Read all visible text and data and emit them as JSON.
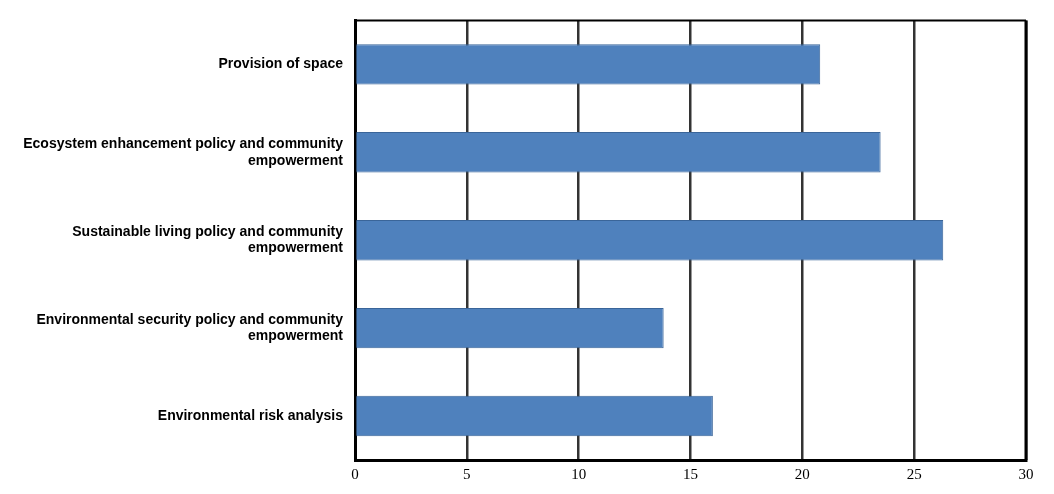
{
  "chart_data": {
    "type": "bar",
    "orientation": "horizontal",
    "categories": [
      "Provision of space",
      "Ecosystem enhancement policy and community empowerment",
      "Sustainable living  policy and community empowerment",
      "Environmental security policy and community empowerment",
      "Environmental risk analysis"
    ],
    "values": [
      20.8,
      23.5,
      26.3,
      13.8,
      16.0
    ],
    "color": "#4f81bd",
    "xlim": [
      0,
      30
    ],
    "xticks": [
      0,
      5,
      10,
      15,
      20,
      25,
      30
    ],
    "grid": "x",
    "legend": false
  }
}
